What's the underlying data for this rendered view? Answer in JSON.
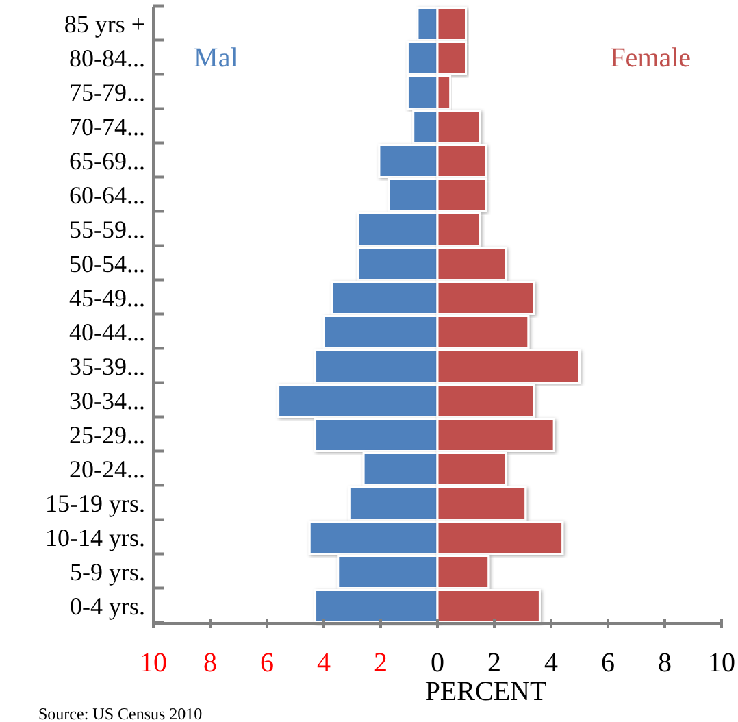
{
  "chart_data": {
    "type": "bar",
    "orientation": "horizontal",
    "stacked": true,
    "categories": [
      "85 yrs +",
      "80-84...",
      "75-79...",
      "70-74...",
      "65-69...",
      "60-64...",
      "55-59...",
      "50-54...",
      "45-49...",
      "40-44...",
      "35-39...",
      "30-34...",
      "25-29...",
      "20-24...",
      "15-19 yrs.",
      "10-14 yrs.",
      "5-9 yrs.",
      "0-4 yrs."
    ],
    "series": [
      {
        "name": "Mal",
        "color": "#4f81bd",
        "values": [
          -0.7,
          -1.05,
          -1.05,
          -0.85,
          -2.05,
          -1.7,
          -2.8,
          -2.8,
          -3.7,
          -4.0,
          -4.3,
          -5.6,
          -4.3,
          -2.6,
          -3.1,
          -4.5,
          -3.5,
          -4.3
        ]
      },
      {
        "name": "Female",
        "color": "#c0504d",
        "values": [
          1.0,
          1.0,
          0.45,
          1.5,
          1.7,
          1.7,
          1.5,
          2.4,
          3.4,
          3.2,
          5.0,
          3.4,
          4.1,
          2.4,
          3.1,
          4.4,
          1.8,
          3.6
        ]
      }
    ],
    "xlim": [
      -10,
      10
    ],
    "xticks": [
      {
        "value": -10,
        "label": "10"
      },
      {
        "value": -8,
        "label": "8"
      },
      {
        "value": -6,
        "label": "6"
      },
      {
        "value": -4,
        "label": "4"
      },
      {
        "value": -2,
        "label": "2"
      },
      0,
      2,
      4,
      6,
      8,
      10
    ],
    "xlabel": "PERCENT",
    "annotations": [
      "Source: US Census 2010"
    ],
    "grid": false,
    "legend": false
  }
}
